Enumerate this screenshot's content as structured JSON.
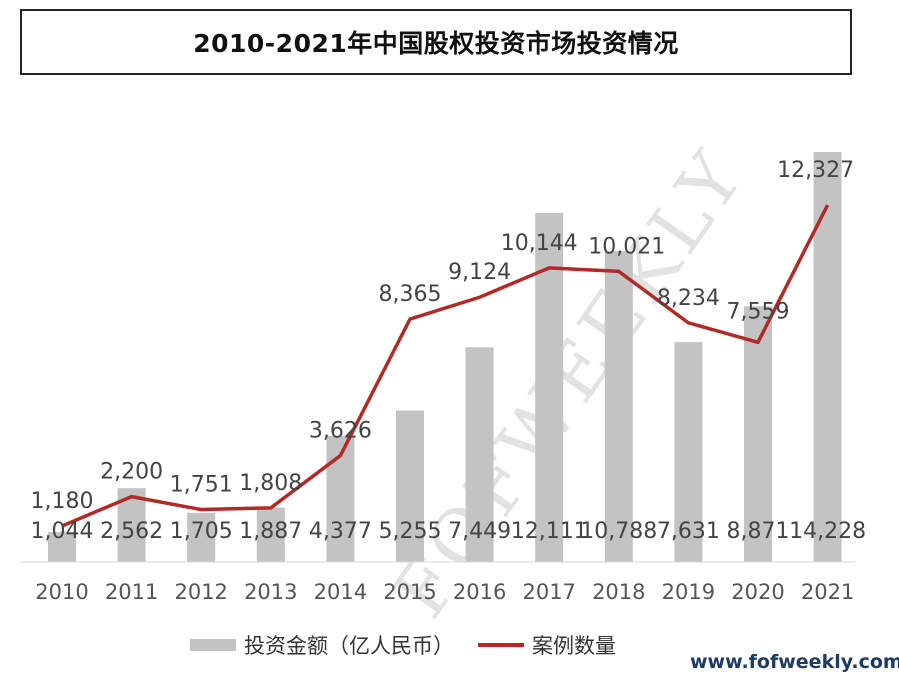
{
  "title": "2010-2021年中国股权投资市场投资情况",
  "watermark": "FOFWEEKLY",
  "site_url": "www.fofweekly.com",
  "colors": {
    "bar": "#c3c3c3",
    "line": "#b22a26",
    "text": "#444444"
  },
  "chart_data": {
    "type": "bar",
    "categories": [
      "2010",
      "2011",
      "2012",
      "2013",
      "2014",
      "2015",
      "2016",
      "2017",
      "2018",
      "2019",
      "2020",
      "2021"
    ],
    "series": [
      {
        "name": "投资金额（亿人民币）",
        "type": "bar",
        "values": [
          1044,
          2562,
          1705,
          1887,
          4377,
          5255,
          7449,
          12111,
          10788,
          7631,
          8871,
          14228
        ],
        "labels": [
          "1,044",
          "2,562",
          "1,705",
          "1,887",
          "4,377",
          "5,255",
          "7,449",
          "12,111",
          "10,788",
          "7,631",
          "8,871",
          "14,228"
        ]
      },
      {
        "name": "案例数量",
        "type": "line",
        "values": [
          1180,
          2200,
          1751,
          1808,
          3626,
          8365,
          9124,
          10144,
          10021,
          8234,
          7559,
          12327
        ],
        "labels": [
          "1,180",
          "2,200",
          "1,751",
          "1,808",
          "3,626",
          "8,365",
          "9,124",
          "10,144",
          "10,021",
          "8,234",
          "7,559",
          "12,327"
        ]
      }
    ],
    "legend": [
      "投资金额（亿人民币）",
      "案例数量"
    ],
    "legend_position": "bottom",
    "grid": false
  }
}
